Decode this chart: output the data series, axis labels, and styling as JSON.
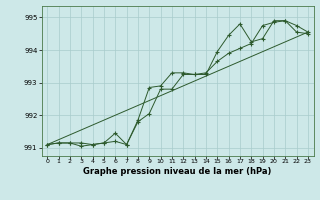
{
  "xlabel": "Graphe pression niveau de la mer (hPa)",
  "bg_color": "#cde8e8",
  "line_color": "#2d5a2d",
  "grid_color": "#a8cccc",
  "ylim": [
    990.75,
    995.35
  ],
  "xlim": [
    -0.5,
    23.5
  ],
  "yticks": [
    991,
    992,
    993,
    994,
    995
  ],
  "xticks": [
    0,
    1,
    2,
    3,
    4,
    5,
    6,
    7,
    8,
    9,
    10,
    11,
    12,
    13,
    14,
    15,
    16,
    17,
    18,
    19,
    20,
    21,
    22,
    23
  ],
  "series1": [
    991.1,
    991.15,
    991.15,
    991.15,
    991.1,
    991.15,
    991.2,
    991.1,
    991.85,
    992.85,
    992.9,
    993.3,
    993.3,
    993.25,
    993.3,
    993.65,
    993.9,
    994.05,
    994.2,
    994.75,
    994.85,
    994.9,
    994.75,
    994.55
  ],
  "series2": [
    991.1,
    991.15,
    991.15,
    991.05,
    991.1,
    991.15,
    991.45,
    991.1,
    991.8,
    992.05,
    992.8,
    992.8,
    993.25,
    993.25,
    993.25,
    993.95,
    994.45,
    994.8,
    994.25,
    994.35,
    994.9,
    994.9,
    994.55,
    994.5
  ],
  "series3_x": [
    0,
    23
  ],
  "series3_y": [
    991.1,
    994.55
  ]
}
